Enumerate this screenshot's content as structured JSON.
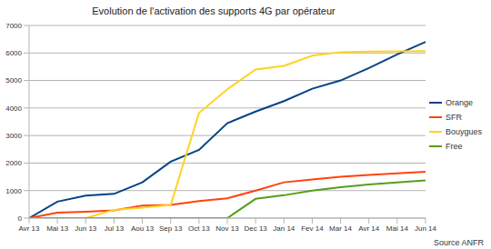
{
  "chart_data": {
    "type": "line",
    "title": "Evolution de l'activation des supports 4G par opérateur",
    "categories": [
      "Avr 13",
      "Mai 13",
      "Jun 13",
      "Jul 13",
      "Aou 13",
      "Sep 13",
      "Oct 13",
      "Nov 13",
      "Dec 13",
      "Jan 14",
      "Fev 14",
      "Mar 14",
      "Avr 14",
      "Mai 14",
      "Jun 14"
    ],
    "series": [
      {
        "name": "Orange",
        "color": "#004586",
        "values": [
          0,
          600,
          820,
          880,
          1300,
          2050,
          2480,
          3450,
          3870,
          4250,
          4700,
          5000,
          5450,
          5950,
          6400
        ]
      },
      {
        "name": "SFR",
        "color": "#ff420e",
        "values": [
          0,
          200,
          230,
          280,
          450,
          480,
          620,
          720,
          1000,
          1300,
          1400,
          1500,
          1570,
          1630,
          1680
        ]
      },
      {
        "name": "Bouygues",
        "color": "#ffd320",
        "values": [
          0,
          0,
          0,
          300,
          380,
          480,
          3820,
          4680,
          5400,
          5530,
          5900,
          6030,
          6050,
          6060,
          6070
        ]
      },
      {
        "name": "Free",
        "color": "#579d1c",
        "values": [
          0,
          0,
          0,
          0,
          0,
          0,
          0,
          0,
          700,
          830,
          1000,
          1120,
          1220,
          1300,
          1370
        ]
      }
    ],
    "ylim": [
      0,
      7000
    ],
    "yticks": [
      0,
      1000,
      2000,
      3000,
      4000,
      5000,
      6000,
      7000
    ],
    "grid": true,
    "legend": "right",
    "annotations": [
      "Source ANFR"
    ]
  }
}
